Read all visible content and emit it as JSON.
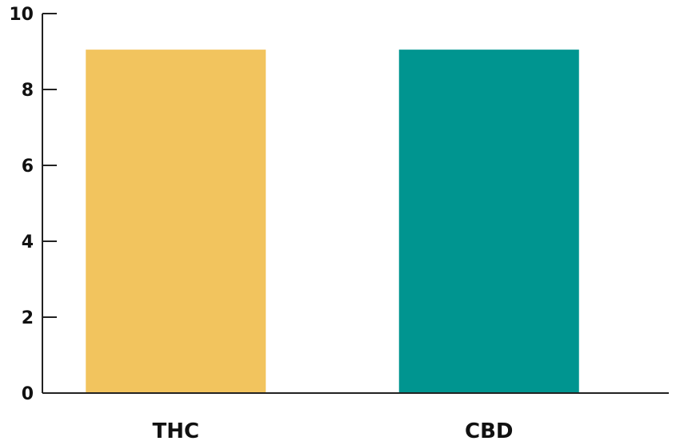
{
  "chart_data": {
    "type": "bar",
    "categories": [
      "THC",
      "CBD"
    ],
    "values": [
      9.05,
      9.05
    ],
    "colors": [
      "#F2C45E",
      "#009590"
    ],
    "ylim": [
      0,
      10
    ],
    "yticks": [
      0,
      2,
      4,
      6,
      8,
      10
    ],
    "ytick_labels": [
      "0",
      "2",
      "4",
      "6",
      "8",
      "10"
    ],
    "title": "",
    "xlabel": "",
    "ylabel": "",
    "grid": false,
    "legend": "none"
  }
}
